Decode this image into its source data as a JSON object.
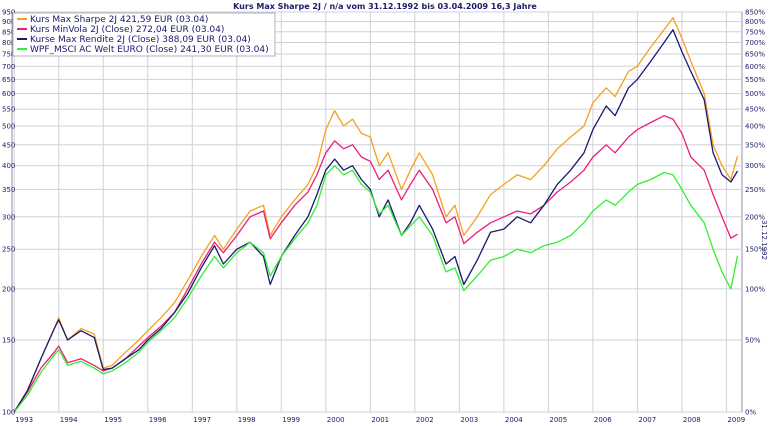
{
  "chart_data": {
    "type": "line",
    "title": "Kurs Max Sharpe 2J / n/a vom 31.12.1992 bis 03.04.2009 16,3 Jahre",
    "right_axis_label": "31.12.1992",
    "y_scale": "log",
    "ylim": [
      100,
      950
    ],
    "xlim": [
      1992.95,
      2009.35
    ],
    "grid": true,
    "legend_position": "top-left",
    "left_ticks": [
      100,
      150,
      200,
      250,
      300,
      350,
      400,
      450,
      500,
      550,
      600,
      650,
      700,
      750,
      800,
      850,
      900,
      950
    ],
    "right_ticks": [
      "0%",
      "50%",
      "100%",
      "150%",
      "200%",
      "250%",
      "300%",
      "350%",
      "400%",
      "450%",
      "500%",
      "550%",
      "600%",
      "650%",
      "700%",
      "750%",
      "800%",
      "850%"
    ],
    "x_ticks": [
      "1993",
      "1994",
      "1995",
      "1996",
      "1997",
      "1998",
      "1999",
      "2000",
      "2001",
      "2002",
      "2003",
      "2004",
      "2005",
      "2006",
      "2007",
      "2008",
      "2009"
    ],
    "series": [
      {
        "name": "Kurs Max Sharpe 2J 421,59 EUR (03.04)",
        "color": "#f5a020",
        "points": [
          [
            1993.0,
            100
          ],
          [
            1993.3,
            113
          ],
          [
            1993.6,
            135
          ],
          [
            1993.9,
            160
          ],
          [
            1994.0,
            170
          ],
          [
            1994.2,
            150
          ],
          [
            1994.5,
            160
          ],
          [
            1994.8,
            155
          ],
          [
            1995.0,
            128
          ],
          [
            1995.2,
            130
          ],
          [
            1995.5,
            140
          ],
          [
            1995.8,
            150
          ],
          [
            1996.0,
            158
          ],
          [
            1996.3,
            170
          ],
          [
            1996.6,
            185
          ],
          [
            1996.9,
            210
          ],
          [
            1997.2,
            240
          ],
          [
            1997.5,
            270
          ],
          [
            1997.7,
            250
          ],
          [
            1998.0,
            280
          ],
          [
            1998.3,
            310
          ],
          [
            1998.6,
            320
          ],
          [
            1998.75,
            270
          ],
          [
            1999.0,
            300
          ],
          [
            1999.3,
            330
          ],
          [
            1999.6,
            360
          ],
          [
            1999.8,
            400
          ],
          [
            2000.0,
            490
          ],
          [
            2000.2,
            545
          ],
          [
            2000.4,
            500
          ],
          [
            2000.6,
            520
          ],
          [
            2000.8,
            480
          ],
          [
            2001.0,
            470
          ],
          [
            2001.2,
            400
          ],
          [
            2001.4,
            430
          ],
          [
            2001.7,
            350
          ],
          [
            2001.9,
            390
          ],
          [
            2002.1,
            430
          ],
          [
            2002.4,
            380
          ],
          [
            2002.7,
            300
          ],
          [
            2002.9,
            320
          ],
          [
            2003.1,
            270
          ],
          [
            2003.4,
            300
          ],
          [
            2003.7,
            340
          ],
          [
            2004.0,
            360
          ],
          [
            2004.3,
            380
          ],
          [
            2004.6,
            370
          ],
          [
            2004.9,
            400
          ],
          [
            2005.2,
            440
          ],
          [
            2005.5,
            470
          ],
          [
            2005.8,
            500
          ],
          [
            2006.0,
            570
          ],
          [
            2006.3,
            620
          ],
          [
            2006.5,
            590
          ],
          [
            2006.8,
            680
          ],
          [
            2007.0,
            700
          ],
          [
            2007.3,
            780
          ],
          [
            2007.6,
            860
          ],
          [
            2007.8,
            920
          ],
          [
            2008.0,
            820
          ],
          [
            2008.2,
            720
          ],
          [
            2008.5,
            600
          ],
          [
            2008.7,
            450
          ],
          [
            2008.9,
            400
          ],
          [
            2009.1,
            370
          ],
          [
            2009.25,
            422
          ]
        ]
      },
      {
        "name": "Kurs MinVola 2J (Close) 272,04 EUR (03.04)",
        "color": "#e8207a",
        "points": [
          [
            1993.0,
            100
          ],
          [
            1993.3,
            112
          ],
          [
            1993.6,
            128
          ],
          [
            1993.9,
            140
          ],
          [
            1994.0,
            145
          ],
          [
            1994.2,
            132
          ],
          [
            1994.5,
            135
          ],
          [
            1994.8,
            130
          ],
          [
            1995.0,
            126
          ],
          [
            1995.2,
            128
          ],
          [
            1995.5,
            135
          ],
          [
            1995.8,
            145
          ],
          [
            1996.0,
            152
          ],
          [
            1996.3,
            162
          ],
          [
            1996.6,
            175
          ],
          [
            1996.9,
            200
          ],
          [
            1997.2,
            230
          ],
          [
            1997.5,
            260
          ],
          [
            1997.7,
            245
          ],
          [
            1998.0,
            270
          ],
          [
            1998.3,
            300
          ],
          [
            1998.6,
            310
          ],
          [
            1998.75,
            265
          ],
          [
            1999.0,
            290
          ],
          [
            1999.3,
            320
          ],
          [
            1999.6,
            345
          ],
          [
            1999.8,
            380
          ],
          [
            2000.0,
            430
          ],
          [
            2000.2,
            460
          ],
          [
            2000.4,
            440
          ],
          [
            2000.6,
            450
          ],
          [
            2000.8,
            420
          ],
          [
            2001.0,
            410
          ],
          [
            2001.2,
            370
          ],
          [
            2001.4,
            390
          ],
          [
            2001.7,
            330
          ],
          [
            2001.9,
            360
          ],
          [
            2002.1,
            390
          ],
          [
            2002.4,
            350
          ],
          [
            2002.7,
            290
          ],
          [
            2002.9,
            300
          ],
          [
            2003.1,
            258
          ],
          [
            2003.4,
            275
          ],
          [
            2003.7,
            290
          ],
          [
            2004.0,
            300
          ],
          [
            2004.3,
            310
          ],
          [
            2004.6,
            305
          ],
          [
            2004.9,
            320
          ],
          [
            2005.2,
            345
          ],
          [
            2005.5,
            365
          ],
          [
            2005.8,
            390
          ],
          [
            2006.0,
            420
          ],
          [
            2006.3,
            450
          ],
          [
            2006.5,
            430
          ],
          [
            2006.8,
            470
          ],
          [
            2007.0,
            490
          ],
          [
            2007.3,
            510
          ],
          [
            2007.6,
            530
          ],
          [
            2007.8,
            520
          ],
          [
            2008.0,
            480
          ],
          [
            2008.2,
            420
          ],
          [
            2008.5,
            390
          ],
          [
            2008.7,
            340
          ],
          [
            2008.9,
            300
          ],
          [
            2009.1,
            266
          ],
          [
            2009.25,
            272
          ]
        ]
      },
      {
        "name": "Kurse Max Rendite 2J (Close) 388,09 EUR (03.04)",
        "color": "#1a1a6e",
        "points": [
          [
            1993.0,
            100
          ],
          [
            1993.3,
            113
          ],
          [
            1993.6,
            135
          ],
          [
            1993.9,
            160
          ],
          [
            1994.0,
            168
          ],
          [
            1994.2,
            150
          ],
          [
            1994.5,
            158
          ],
          [
            1994.8,
            152
          ],
          [
            1995.0,
            127
          ],
          [
            1995.2,
            128
          ],
          [
            1995.5,
            135
          ],
          [
            1995.8,
            142
          ],
          [
            1996.0,
            150
          ],
          [
            1996.3,
            160
          ],
          [
            1996.6,
            175
          ],
          [
            1996.9,
            195
          ],
          [
            1997.2,
            225
          ],
          [
            1997.5,
            255
          ],
          [
            1997.7,
            230
          ],
          [
            1998.0,
            250
          ],
          [
            1998.3,
            260
          ],
          [
            1998.6,
            240
          ],
          [
            1998.75,
            205
          ],
          [
            1999.0,
            240
          ],
          [
            1999.3,
            270
          ],
          [
            1999.6,
            300
          ],
          [
            1999.8,
            340
          ],
          [
            2000.0,
            390
          ],
          [
            2000.2,
            415
          ],
          [
            2000.4,
            390
          ],
          [
            2000.6,
            400
          ],
          [
            2000.8,
            370
          ],
          [
            2001.0,
            350
          ],
          [
            2001.2,
            300
          ],
          [
            2001.4,
            330
          ],
          [
            2001.7,
            270
          ],
          [
            2001.9,
            290
          ],
          [
            2002.1,
            320
          ],
          [
            2002.4,
            280
          ],
          [
            2002.7,
            230
          ],
          [
            2002.9,
            240
          ],
          [
            2003.1,
            205
          ],
          [
            2003.4,
            235
          ],
          [
            2003.7,
            275
          ],
          [
            2004.0,
            280
          ],
          [
            2004.3,
            300
          ],
          [
            2004.6,
            290
          ],
          [
            2004.9,
            320
          ],
          [
            2005.2,
            360
          ],
          [
            2005.5,
            390
          ],
          [
            2005.8,
            430
          ],
          [
            2006.0,
            490
          ],
          [
            2006.3,
            560
          ],
          [
            2006.5,
            530
          ],
          [
            2006.8,
            620
          ],
          [
            2007.0,
            650
          ],
          [
            2007.3,
            720
          ],
          [
            2007.6,
            800
          ],
          [
            2007.8,
            860
          ],
          [
            2008.0,
            760
          ],
          [
            2008.2,
            680
          ],
          [
            2008.5,
            580
          ],
          [
            2008.7,
            430
          ],
          [
            2008.9,
            380
          ],
          [
            2009.1,
            365
          ],
          [
            2009.25,
            388
          ]
        ]
      },
      {
        "name": "WPF_MSCI AC Welt EURO (Close) 241,30 EUR (03.04)",
        "color": "#33ee33",
        "points": [
          [
            1993.0,
            100
          ],
          [
            1993.3,
            110
          ],
          [
            1993.6,
            125
          ],
          [
            1993.9,
            138
          ],
          [
            1994.0,
            142
          ],
          [
            1994.2,
            130
          ],
          [
            1994.5,
            133
          ],
          [
            1994.8,
            128
          ],
          [
            1995.0,
            124
          ],
          [
            1995.2,
            126
          ],
          [
            1995.5,
            132
          ],
          [
            1995.8,
            140
          ],
          [
            1996.0,
            148
          ],
          [
            1996.3,
            158
          ],
          [
            1996.6,
            170
          ],
          [
            1996.9,
            190
          ],
          [
            1997.2,
            215
          ],
          [
            1997.5,
            240
          ],
          [
            1997.7,
            225
          ],
          [
            1998.0,
            245
          ],
          [
            1998.3,
            260
          ],
          [
            1998.6,
            245
          ],
          [
            1998.75,
            215
          ],
          [
            1999.0,
            240
          ],
          [
            1999.3,
            265
          ],
          [
            1999.6,
            290
          ],
          [
            1999.8,
            320
          ],
          [
            2000.0,
            380
          ],
          [
            2000.2,
            400
          ],
          [
            2000.4,
            380
          ],
          [
            2000.6,
            390
          ],
          [
            2000.8,
            360
          ],
          [
            2001.0,
            345
          ],
          [
            2001.2,
            305
          ],
          [
            2001.4,
            320
          ],
          [
            2001.7,
            270
          ],
          [
            2001.9,
            285
          ],
          [
            2002.1,
            300
          ],
          [
            2002.4,
            270
          ],
          [
            2002.7,
            220
          ],
          [
            2002.9,
            225
          ],
          [
            2003.1,
            198
          ],
          [
            2003.4,
            215
          ],
          [
            2003.7,
            235
          ],
          [
            2004.0,
            240
          ],
          [
            2004.3,
            250
          ],
          [
            2004.6,
            245
          ],
          [
            2004.9,
            255
          ],
          [
            2005.2,
            260
          ],
          [
            2005.5,
            270
          ],
          [
            2005.8,
            290
          ],
          [
            2006.0,
            310
          ],
          [
            2006.3,
            330
          ],
          [
            2006.5,
            320
          ],
          [
            2006.8,
            345
          ],
          [
            2007.0,
            360
          ],
          [
            2007.3,
            370
          ],
          [
            2007.6,
            385
          ],
          [
            2007.8,
            380
          ],
          [
            2008.0,
            350
          ],
          [
            2008.2,
            320
          ],
          [
            2008.5,
            290
          ],
          [
            2008.7,
            250
          ],
          [
            2008.9,
            220
          ],
          [
            2009.1,
            200
          ],
          [
            2009.25,
            241
          ]
        ]
      }
    ]
  }
}
